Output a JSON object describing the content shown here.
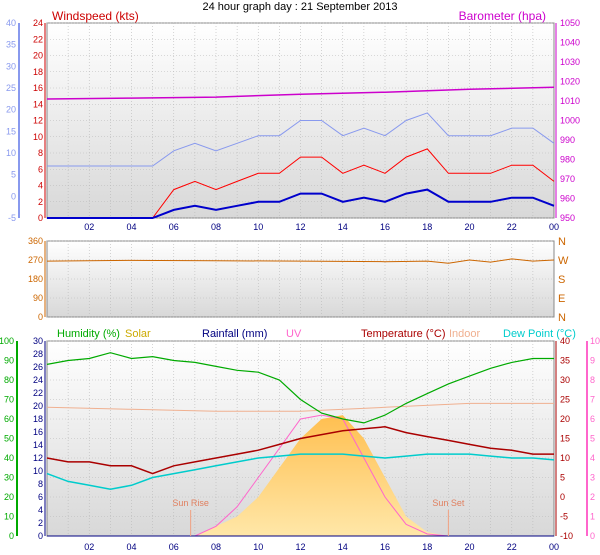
{
  "title": "24 hour graph day : 21 September 2013",
  "panels": {
    "wind": {
      "left_label": "Windspeed (kts)",
      "right_label": "Barometer (hpa)",
      "left_ticks": [
        0,
        2,
        4,
        6,
        8,
        10,
        12,
        14,
        16,
        18,
        20,
        22,
        24
      ],
      "left_outer_ticks": [
        "-5",
        "0",
        "5",
        "10",
        "15",
        "20",
        "25",
        "30",
        "35",
        "40"
      ],
      "right_ticks": [
        950,
        960,
        970,
        980,
        990,
        1000,
        1010,
        1020,
        1030,
        1040,
        1050
      ]
    },
    "direction": {
      "left_ticks": [
        0,
        90,
        180,
        270,
        360
      ],
      "right_labels": [
        "N",
        "W",
        "S",
        "E",
        "N"
      ]
    },
    "weather": {
      "labels": {
        "humidity": "Humidity (%)",
        "solar": "Solar",
        "rainfall": "Rainfall (mm)",
        "uv": "UV",
        "temperature": "Temperature (°C)",
        "indoor": "Indoor",
        "dew_point": "Dew Point (°C)"
      },
      "humidity_ticks": [
        0,
        10,
        20,
        30,
        40,
        50,
        60,
        70,
        80,
        90,
        100
      ],
      "rain_ticks": [
        0,
        2,
        4,
        6,
        8,
        10,
        12,
        14,
        16,
        18,
        20,
        22,
        24,
        26,
        28,
        30
      ],
      "temp_ticks": [
        -10,
        -5,
        0,
        5,
        10,
        15,
        20,
        25,
        30,
        35,
        40
      ],
      "uv_ticks": [
        0,
        1,
        2,
        3,
        4,
        5,
        6,
        7,
        8,
        9,
        10
      ],
      "sun_rise": "Sun Rise",
      "sun_set": "Sun Set"
    }
  },
  "x_tick_labels": [
    "02",
    "04",
    "06",
    "08",
    "10",
    "12",
    "14",
    "16",
    "18",
    "20",
    "22",
    "00"
  ],
  "colors": {
    "wind_axis": "#cc0000",
    "baro": "#cc00cc",
    "wind_gust": "#ff0000",
    "wind_avg": "#0000cc",
    "wind_outer_axis": "#8899ee",
    "direction": "#cc6600",
    "humidity": "#00aa00",
    "solar": "#ffd070",
    "rainfall": "#000080",
    "uv": "#ff66cc",
    "temperature": "#aa0000",
    "indoor": "#f0b090",
    "dew_point": "#00cccc",
    "plot_bg_top": "#ffffff",
    "plot_bg_bottom": "#d8d8d8"
  },
  "chart_data": [
    {
      "type": "line",
      "series": [
        {
          "name": "Barometer (hpa)",
          "x": [
            0,
            4,
            8,
            12,
            16,
            20,
            24
          ],
          "values": [
            1011,
            1011.5,
            1012,
            1013.5,
            1014.5,
            1016,
            1017
          ]
        },
        {
          "name": "Windspeed (kts)",
          "x": [
            0,
            2,
            4,
            5,
            6,
            7,
            8,
            9,
            10,
            11,
            12,
            13,
            14,
            15,
            16,
            17,
            18,
            19,
            20,
            21,
            22,
            23,
            24
          ],
          "values": [
            0,
            0,
            0,
            0,
            1,
            1.5,
            1,
            1.5,
            2,
            2,
            3,
            3,
            2,
            2.5,
            2,
            3,
            3.5,
            2,
            2,
            2,
            2.5,
            2.5,
            1.5
          ]
        }
      ],
      "ylim": [
        0,
        24
      ]
    },
    {
      "type": "line",
      "series": [
        {
          "name": "Wind Direction",
          "x": [
            0,
            4,
            8,
            12,
            16,
            18,
            19,
            20,
            21,
            22,
            23,
            24
          ],
          "values": [
            265,
            268,
            266,
            265,
            262,
            265,
            255,
            270,
            260,
            275,
            265,
            270
          ]
        }
      ],
      "ylim": [
        0,
        360
      ]
    },
    {
      "type": "line",
      "series": [
        {
          "name": "Humidity (%)",
          "x": [
            0,
            1,
            2,
            3,
            4,
            5,
            6,
            7,
            8,
            9,
            10,
            11,
            12,
            13,
            14,
            15,
            16,
            17,
            18,
            19,
            20,
            21,
            22,
            23,
            24
          ],
          "values": [
            88,
            90,
            91,
            94,
            91,
            92,
            90,
            89,
            87,
            85,
            84,
            80,
            70,
            63,
            60,
            58,
            62,
            68,
            73,
            78,
            82,
            86,
            89,
            91,
            91
          ]
        },
        {
          "name": "Temperature (°C)",
          "x": [
            0,
            1,
            2,
            3,
            4,
            5,
            6,
            7,
            8,
            9,
            10,
            11,
            12,
            13,
            14,
            15,
            16,
            17,
            18,
            19,
            20,
            21,
            22,
            23,
            24
          ],
          "values": [
            10,
            9,
            9,
            8,
            8,
            6,
            8,
            9,
            10,
            11,
            12,
            13.5,
            15,
            16,
            17,
            17.5,
            18,
            16.5,
            15.5,
            14.5,
            13.5,
            12.5,
            12,
            11,
            11
          ]
        },
        {
          "name": "Dew Point (°C)",
          "x": [
            0,
            1,
            2,
            3,
            4,
            5,
            6,
            7,
            8,
            9,
            10,
            11,
            12,
            13,
            14,
            15,
            16,
            17,
            18,
            19,
            20,
            21,
            22,
            23,
            24
          ],
          "values": [
            6,
            4,
            3,
            2,
            3,
            5,
            6,
            7,
            8,
            9,
            10,
            10.5,
            11,
            11,
            11,
            10.5,
            10,
            10.5,
            11,
            11,
            11,
            10.5,
            10,
            10,
            9.5
          ]
        },
        {
          "name": "Indoor",
          "x": [
            0,
            4,
            8,
            12,
            16,
            20,
            24
          ],
          "values": [
            23,
            22.5,
            22,
            22,
            23,
            24,
            24
          ]
        },
        {
          "name": "Solar",
          "x": [
            6,
            7,
            8,
            9,
            10,
            11,
            12,
            13,
            14,
            15,
            16,
            17,
            18,
            19
          ],
          "values": [
            0,
            0,
            5,
            10,
            20,
            35,
            50,
            60,
            62,
            50,
            30,
            10,
            2,
            0
          ]
        },
        {
          "name": "UV",
          "x": [
            6,
            7,
            8,
            9,
            10,
            11,
            12,
            13,
            14,
            15,
            16,
            17,
            18,
            19
          ],
          "values": [
            0,
            0,
            0.5,
            1.5,
            3,
            4.5,
            6,
            6.2,
            6,
            4,
            2,
            0.6,
            0.1,
            0
          ]
        },
        {
          "name": "Rainfall (mm)",
          "x": [
            0,
            24
          ],
          "values": [
            0,
            0
          ]
        }
      ],
      "ylim": [
        0,
        100
      ]
    }
  ]
}
